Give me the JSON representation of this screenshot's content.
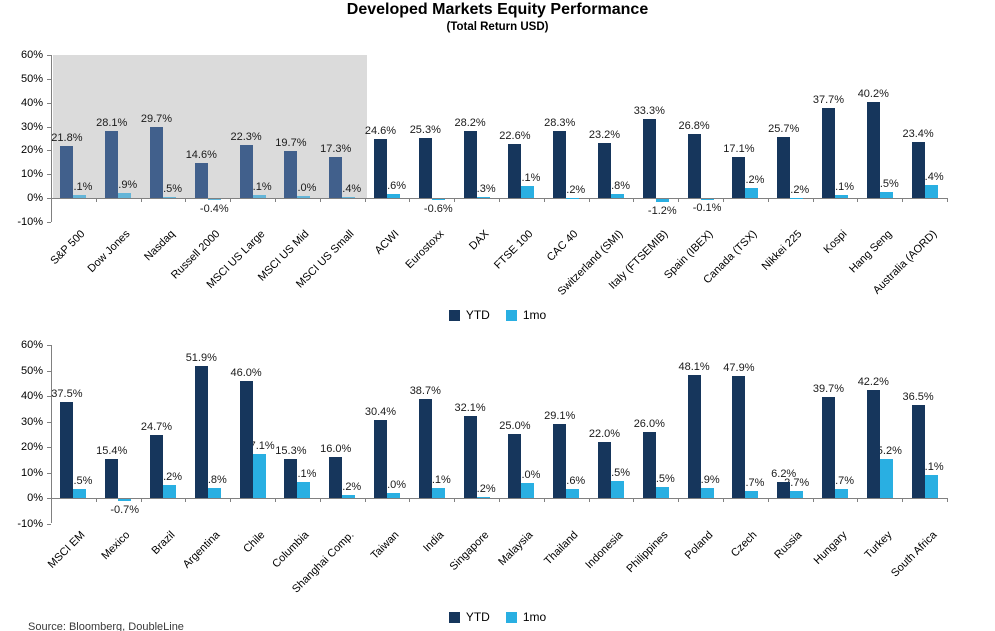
{
  "title": "Developed Markets Equity Performance",
  "subtitle": "(Total Return USD)",
  "source_note": "Source: Bloomberg, DoubleLine",
  "legend": {
    "ytd": "YTD",
    "mo": "1mo"
  },
  "colors": {
    "ytd": "#16365C",
    "mo": "#29AFE2",
    "ytd_shaded": "#41608C",
    "mo_shaded": "#63B5D8",
    "shade_bg": "#DBDBDB",
    "axis": "#808080",
    "label": "#1A1A1A"
  },
  "chart_data": [
    {
      "type": "bar",
      "name": "developed-markets",
      "ylim": [
        -10,
        60
      ],
      "grid": false,
      "legend_position": "bottom",
      "y_ticks": [
        "60%",
        "50%",
        "40%",
        "30%",
        "20%",
        "10%",
        "0%",
        "-10%"
      ],
      "shaded_first_n": 7,
      "categories": [
        "S&P 500",
        "Dow Jones",
        "Nasdaq",
        "Russell 2000",
        "MSCI US Large",
        "MSCI US Mid",
        "MSCI US Small",
        "ACWI",
        "Eurostoxx",
        "DAX",
        "FTSE 100",
        "CAC 40",
        "Switzerland (SMI)",
        "Italy (FTSEMIB)",
        "Spain (IBEX)",
        "Canada (TSX)",
        "Nikkei 225",
        "Kospi",
        "Hang Seng",
        "Australia (AORD)"
      ],
      "series": [
        {
          "name": "YTD",
          "values": [
            21.8,
            28.1,
            29.7,
            14.6,
            22.3,
            19.7,
            17.3,
            24.6,
            25.3,
            28.2,
            22.6,
            28.3,
            23.2,
            33.3,
            26.8,
            17.1,
            25.7,
            37.7,
            40.2,
            23.4
          ]
        },
        {
          "name": "1mo",
          "values": [
            1.1,
            1.9,
            0.5,
            -0.4,
            1.1,
            1.0,
            0.4,
            1.6,
            -0.6,
            0.3,
            5.1,
            0.2,
            1.8,
            -1.2,
            -0.1,
            4.2,
            0.2,
            1.1,
            2.5,
            5.4
          ]
        }
      ]
    },
    {
      "type": "bar",
      "name": "emerging-markets",
      "ylim": [
        -10,
        60
      ],
      "grid": false,
      "legend_position": "bottom",
      "y_ticks": [
        "60%",
        "50%",
        "40%",
        "30%",
        "20%",
        "10%",
        "0%",
        "-10%"
      ],
      "shaded_first_n": 0,
      "categories": [
        "MSCI EM",
        "Mexico",
        "Brazil",
        "Argentina",
        "Chile",
        "Columbia",
        "Shanghai Comp.",
        "Taiwan",
        "India",
        "Singapore",
        "Malaysia",
        "Thailand",
        "Indonesia",
        "Philippines",
        "Poland",
        "Czech",
        "Russia",
        "Hungary",
        "Turkey",
        "South Africa"
      ],
      "series": [
        {
          "name": "YTD",
          "values": [
            37.5,
            15.4,
            24.7,
            51.9,
            46.0,
            15.3,
            16.0,
            30.4,
            38.7,
            32.1,
            25.0,
            29.1,
            22.0,
            26.0,
            48.1,
            47.9,
            6.2,
            39.7,
            42.2,
            36.5
          ]
        },
        {
          "name": "1mo",
          "values": [
            3.5,
            -0.7,
            5.2,
            3.8,
            17.1,
            6.1,
            1.2,
            2.0,
            4.1,
            0.2,
            6.0,
            3.6,
            6.5,
            4.5,
            3.9,
            2.7,
            2.7,
            3.7,
            15.2,
            9.1
          ]
        }
      ]
    }
  ]
}
